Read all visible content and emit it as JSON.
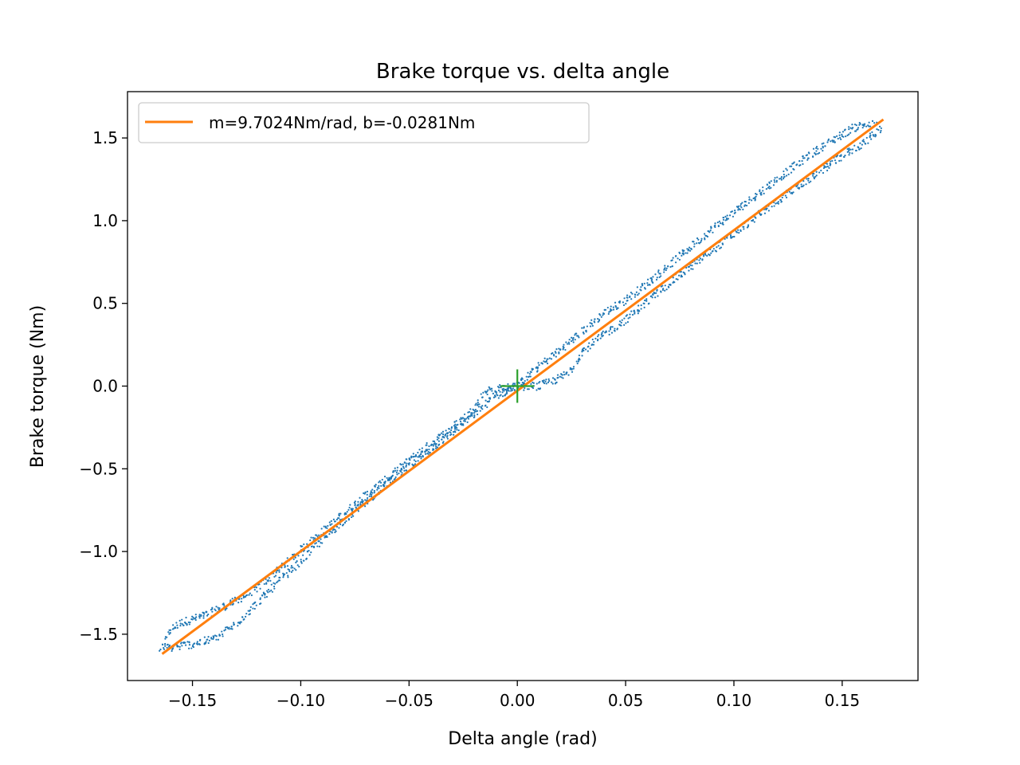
{
  "chart_data": {
    "type": "scatter",
    "title": "Brake torque vs. delta angle",
    "xlabel": "Delta angle (rad)",
    "ylabel": "Brake torque (Nm)",
    "xlim": [
      -0.18,
      0.185
    ],
    "ylim": [
      -1.78,
      1.78
    ],
    "xticks": [
      -0.15,
      -0.1,
      -0.05,
      0.0,
      0.05,
      0.1,
      0.15
    ],
    "xtick_labels": [
      "−0.15",
      "−0.10",
      "−0.05",
      "0.00",
      "0.05",
      "0.10",
      "0.15"
    ],
    "yticks": [
      -1.5,
      -1.0,
      -0.5,
      0.0,
      0.5,
      1.0,
      1.5
    ],
    "ytick_labels": [
      "−1.5",
      "−1.0",
      "−0.5",
      "0.0",
      "0.5",
      "1.0",
      "1.5"
    ],
    "grid": false,
    "legend_position": "upper-left",
    "colors": {
      "data": "#1f77b4",
      "fit": "#ff7f0e",
      "origin_marker": "#2ca02c"
    },
    "series": [
      {
        "kind": "scatter",
        "description_points": "upper and lower branches of hysteresis loop",
        "upper_branch": {
          "x": [
            -0.163,
            -0.16,
            -0.155,
            -0.15,
            -0.145,
            -0.14,
            -0.13,
            -0.12,
            -0.11,
            -0.1,
            -0.09,
            -0.08,
            -0.07,
            -0.06,
            -0.05,
            -0.04,
            -0.03,
            -0.02,
            -0.015,
            0.0,
            0.01,
            0.02,
            0.03,
            0.04,
            0.05,
            0.06,
            0.07,
            0.08,
            0.09,
            0.1,
            0.11,
            0.12,
            0.13,
            0.14,
            0.15,
            0.155,
            0.16,
            0.165
          ],
          "y": [
            -1.56,
            -1.47,
            -1.43,
            -1.41,
            -1.39,
            -1.36,
            -1.3,
            -1.22,
            -1.11,
            -0.99,
            -0.88,
            -0.77,
            -0.66,
            -0.56,
            -0.45,
            -0.35,
            -0.25,
            -0.14,
            -0.03,
            0.0,
            0.12,
            0.22,
            0.33,
            0.44,
            0.52,
            0.62,
            0.73,
            0.84,
            0.95,
            1.05,
            1.15,
            1.25,
            1.35,
            1.44,
            1.52,
            1.56,
            1.58,
            1.58
          ]
        },
        "lower_branch": {
          "x": [
            -0.165,
            -0.16,
            -0.155,
            -0.15,
            -0.14,
            -0.13,
            -0.12,
            -0.11,
            -0.1,
            -0.09,
            -0.08,
            -0.07,
            -0.06,
            -0.05,
            -0.04,
            -0.03,
            -0.02,
            -0.01,
            0.0,
            0.01,
            0.02,
            0.025,
            0.03,
            0.04,
            0.05,
            0.06,
            0.07,
            0.08,
            0.09,
            0.1,
            0.11,
            0.12,
            0.13,
            0.14,
            0.15,
            0.16,
            0.168
          ],
          "y": [
            -1.58,
            -1.58,
            -1.57,
            -1.56,
            -1.53,
            -1.44,
            -1.31,
            -1.18,
            -1.06,
            -0.93,
            -0.81,
            -0.7,
            -0.59,
            -0.49,
            -0.38,
            -0.28,
            -0.17,
            -0.06,
            0.0,
            0.0,
            0.05,
            0.1,
            0.21,
            0.31,
            0.4,
            0.51,
            0.62,
            0.72,
            0.82,
            0.92,
            1.02,
            1.12,
            1.21,
            1.3,
            1.39,
            1.47,
            1.56
          ]
        }
      },
      {
        "kind": "line",
        "name": "m=9.7024Nm/rad, b=-0.0281Nm",
        "slope": 9.7024,
        "intercept": -0.0281,
        "x": [
          -0.164,
          0.169
        ]
      },
      {
        "kind": "marker",
        "marker": "+",
        "x": [
          0.0
        ],
        "y": [
          0.0
        ]
      }
    ]
  }
}
